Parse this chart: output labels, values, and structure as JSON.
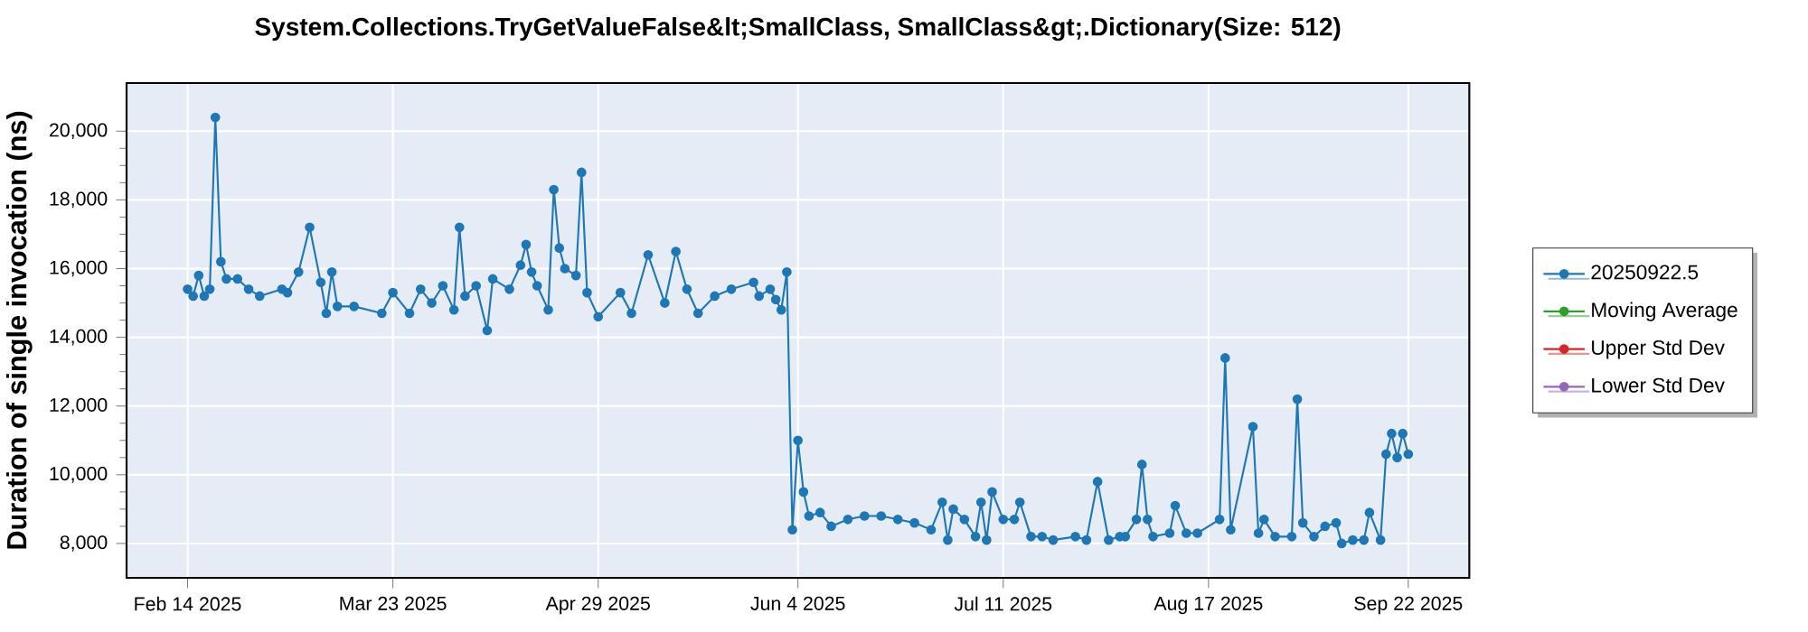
{
  "chart_data": {
    "type": "line",
    "title": "System.Collections.TryGetValueFalse&lt;SmallClass, SmallClass&gt;.Dictionary(Size: 512)",
    "ylabel": "Duration of single invocation (ns)",
    "xlim": [
      "2025-02-03",
      "2025-10-03"
    ],
    "ylim": [
      7000,
      21400
    ],
    "xticks": [
      {
        "value": "2025-02-14",
        "label": "Feb 14 2025"
      },
      {
        "value": "2025-03-23",
        "label": "Mar 23 2025"
      },
      {
        "value": "2025-04-29",
        "label": "Apr 29 2025"
      },
      {
        "value": "2025-06-04",
        "label": "Jun 4 2025"
      },
      {
        "value": "2025-07-11",
        "label": "Jul 11 2025"
      },
      {
        "value": "2025-08-17",
        "label": "Aug 17 2025"
      },
      {
        "value": "2025-09-22",
        "label": "Sep 22 2025"
      }
    ],
    "yticks": [
      {
        "value": 8000,
        "label": "8,000"
      },
      {
        "value": 10000,
        "label": "10,000"
      },
      {
        "value": 12000,
        "label": "12,000"
      },
      {
        "value": 14000,
        "label": "14,000"
      },
      {
        "value": 16000,
        "label": "16,000"
      },
      {
        "value": 18000,
        "label": "18,000"
      },
      {
        "value": 20000,
        "label": "20,000"
      }
    ],
    "grid": true,
    "legend": "right",
    "marker": "circle",
    "line_style": "solid",
    "series": [
      {
        "name": "20250922.5",
        "color": "#1f77b4",
        "x": [
          "2025-02-14",
          "2025-02-15",
          "2025-02-16",
          "2025-02-17",
          "2025-02-18",
          "2025-02-19",
          "2025-02-20",
          "2025-02-21",
          "2025-02-23",
          "2025-02-25",
          "2025-02-27",
          "2025-03-03",
          "2025-03-04",
          "2025-03-06",
          "2025-03-08",
          "2025-03-10",
          "2025-03-11",
          "2025-03-12",
          "2025-03-13",
          "2025-03-16",
          "2025-03-21",
          "2025-03-23",
          "2025-03-26",
          "2025-03-28",
          "2025-03-30",
          "2025-04-01",
          "2025-04-03",
          "2025-04-04",
          "2025-04-05",
          "2025-04-07",
          "2025-04-09",
          "2025-04-10",
          "2025-04-13",
          "2025-04-15",
          "2025-04-16",
          "2025-04-17",
          "2025-04-18",
          "2025-04-20",
          "2025-04-21",
          "2025-04-22",
          "2025-04-23",
          "2025-04-25",
          "2025-04-26",
          "2025-04-27",
          "2025-04-29",
          "2025-05-03",
          "2025-05-05",
          "2025-05-08",
          "2025-05-11",
          "2025-05-13",
          "2025-05-15",
          "2025-05-17",
          "2025-05-20",
          "2025-05-23",
          "2025-05-27",
          "2025-05-28",
          "2025-05-30",
          "2025-05-31",
          "2025-06-01",
          "2025-06-02",
          "2025-06-03",
          "2025-06-04",
          "2025-06-05",
          "2025-06-06",
          "2025-06-08",
          "2025-06-10",
          "2025-06-13",
          "2025-06-16",
          "2025-06-19",
          "2025-06-22",
          "2025-06-25",
          "2025-06-28",
          "2025-06-30",
          "2025-07-01",
          "2025-07-02",
          "2025-07-04",
          "2025-07-06",
          "2025-07-07",
          "2025-07-08",
          "2025-07-09",
          "2025-07-11",
          "2025-07-13",
          "2025-07-14",
          "2025-07-16",
          "2025-07-18",
          "2025-07-20",
          "2025-07-24",
          "2025-07-26",
          "2025-07-28",
          "2025-07-30",
          "2025-08-01",
          "2025-08-02",
          "2025-08-04",
          "2025-08-05",
          "2025-08-06",
          "2025-08-07",
          "2025-08-10",
          "2025-08-11",
          "2025-08-13",
          "2025-08-15",
          "2025-08-19",
          "2025-08-20",
          "2025-08-21",
          "2025-08-25",
          "2025-08-26",
          "2025-08-27",
          "2025-08-29",
          "2025-09-01",
          "2025-09-02",
          "2025-09-03",
          "2025-09-05",
          "2025-09-07",
          "2025-09-09",
          "2025-09-10",
          "2025-09-12",
          "2025-09-14",
          "2025-09-15",
          "2025-09-17",
          "2025-09-18",
          "2025-09-19",
          "2025-09-20",
          "2025-09-21",
          "2025-09-22"
        ],
        "values": [
          15400,
          15200,
          15800,
          15200,
          15400,
          20400,
          16200,
          15700,
          15700,
          15400,
          15200,
          15400,
          15300,
          15900,
          17200,
          15600,
          14700,
          15900,
          14900,
          14900,
          14700,
          15300,
          14700,
          15400,
          15000,
          15500,
          14800,
          17200,
          15200,
          15500,
          14200,
          15700,
          15400,
          16100,
          16700,
          15900,
          15500,
          14800,
          18300,
          16600,
          16000,
          15800,
          18800,
          15300,
          14600,
          15300,
          14700,
          16400,
          15000,
          16500,
          15400,
          14700,
          15200,
          15400,
          15600,
          15200,
          15400,
          15100,
          14800,
          15900,
          8400,
          11000,
          9500,
          8800,
          8900,
          8500,
          8700,
          8800,
          8800,
          8700,
          8600,
          8400,
          9200,
          8100,
          9000,
          8700,
          8200,
          9200,
          8100,
          9500,
          8700,
          8700,
          9200,
          8200,
          8200,
          8100,
          8200,
          8100,
          9800,
          8100,
          8200,
          8200,
          8700,
          10300,
          8700,
          8200,
          8300,
          9100,
          8300,
          8300,
          8700,
          13400,
          8400,
          11400,
          8300,
          8700,
          8200,
          8200,
          12200,
          8600,
          8200,
          8500,
          8600,
          8000,
          8100,
          8100,
          8900,
          8100,
          10600,
          11200,
          10500,
          11200,
          10600
        ]
      },
      {
        "name": "Moving Average",
        "color": "#2ca02c"
      },
      {
        "name": "Upper Std Dev",
        "color": "#d62728"
      },
      {
        "name": "Lower Std Dev",
        "color": "#9467bd"
      }
    ]
  }
}
